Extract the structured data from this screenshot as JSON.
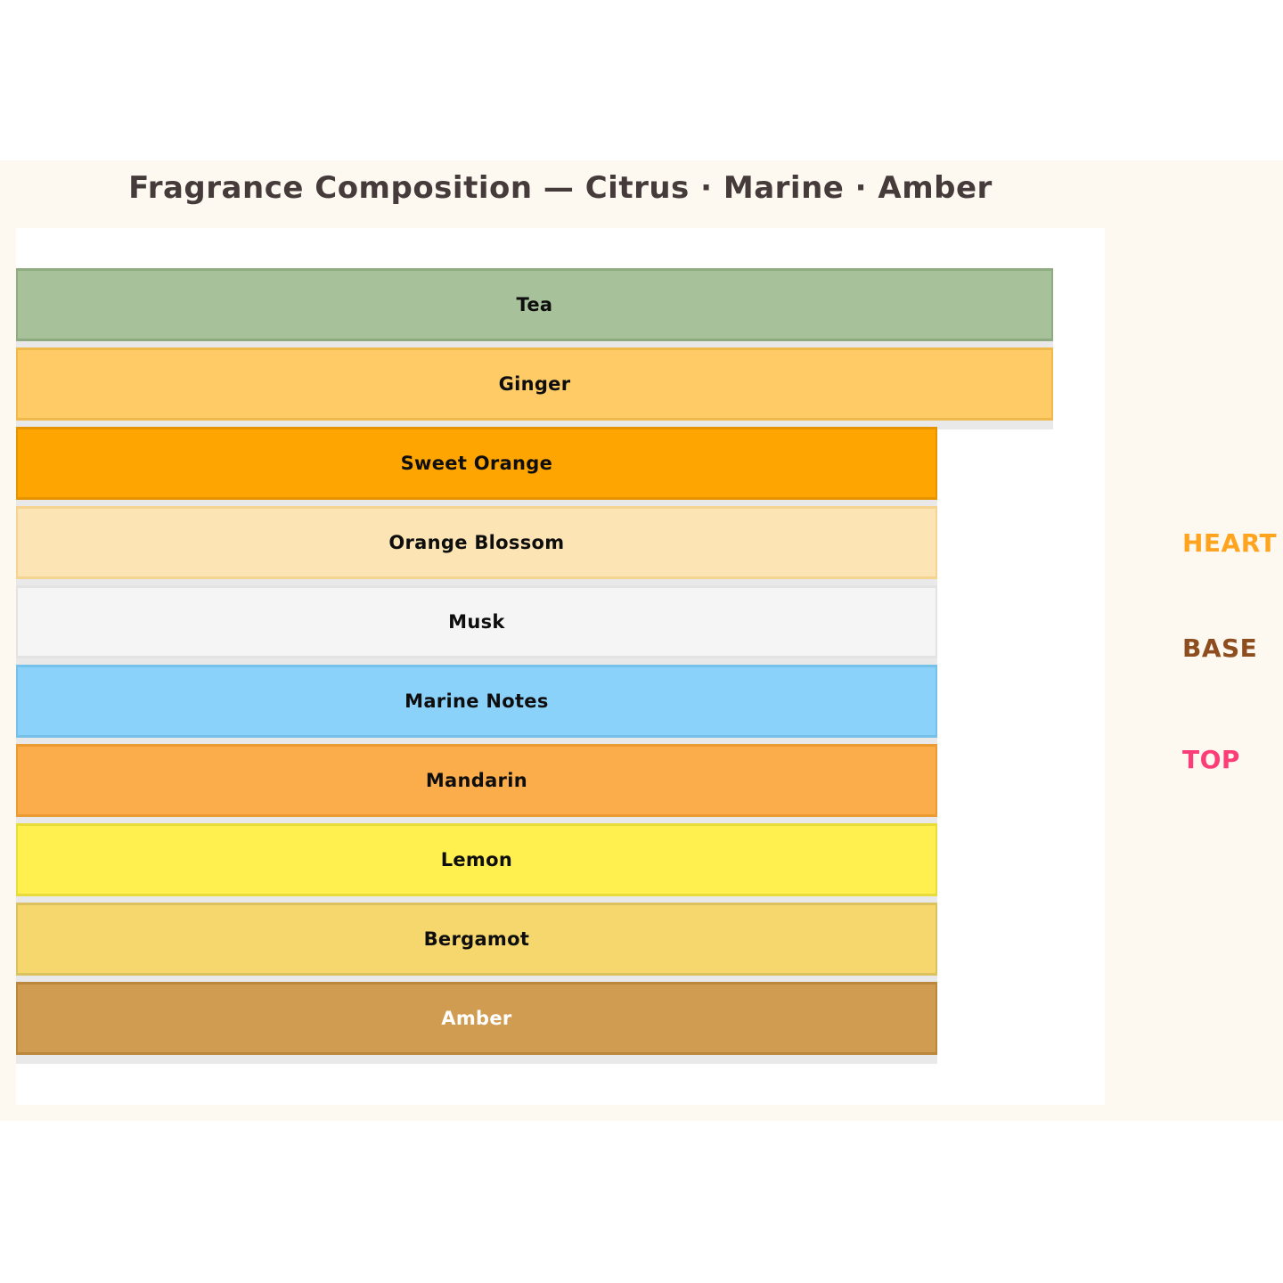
{
  "title": {
    "text": "Fragrance Composition — Citrus · Marine · Amber",
    "color": "#453B3B"
  },
  "colors": {
    "page_bg": "#FFFFFF",
    "band_bg": "#FDF8F0",
    "panel_bg": "#FFFFFF",
    "bar_shadow": "#E9E9E9"
  },
  "side_labels": {
    "heart": {
      "text": "HEART",
      "color": "#FFA41E"
    },
    "base": {
      "text": "BASE",
      "color": "#8E4D1F"
    },
    "top": {
      "text": "TOP",
      "color": "#FC3D77"
    }
  },
  "chart_data": {
    "type": "bar",
    "orientation": "horizontal",
    "title": "Fragrance Composition — Citrus · Marine · Amber",
    "xlabel": "",
    "ylabel": "",
    "axes_visible": false,
    "grid": false,
    "tick_labels_visible": false,
    "legend_position": "right-outside",
    "legend_entries": [
      "HEART",
      "BASE",
      "TOP"
    ],
    "categories": [
      "Tea",
      "Ginger",
      "Sweet Orange",
      "Orange Blossom",
      "Musk",
      "Marine Notes",
      "Mandarin",
      "Lemon",
      "Bergamot",
      "Amber"
    ],
    "values_relative": [
      1.0,
      1.0,
      0.888,
      0.888,
      0.888,
      0.888,
      0.888,
      0.888,
      0.888,
      0.888
    ],
    "values_est": [
      9,
      9,
      8,
      8,
      8,
      8,
      8,
      8,
      8,
      8
    ],
    "bars": [
      {
        "label": "Tea",
        "width_fraction": 0.9525,
        "fill": "#A7C29B",
        "border": "#8FAC80",
        "label_color": "#0E0E0E"
      },
      {
        "label": "Ginger",
        "width_fraction": 0.9525,
        "fill": "#FFCB67",
        "border": "#EFB94D",
        "label_color": "#0E0E0E"
      },
      {
        "label": "Sweet Orange",
        "width_fraction": 0.846,
        "fill": "#FFA502",
        "border": "#E59400",
        "label_color": "#0E0E0E"
      },
      {
        "label": "Orange Blossom",
        "width_fraction": 0.846,
        "fill": "#FCE4B5",
        "border": "#F5D391",
        "label_color": "#0E0E0E"
      },
      {
        "label": "Musk",
        "width_fraction": 0.846,
        "fill": "#F5F5F5",
        "border": "#E3E3E3",
        "label_color": "#0E0E0E"
      },
      {
        "label": "Marine Notes",
        "width_fraction": 0.846,
        "fill": "#8BD2FB",
        "border": "#76C1E9",
        "label_color": "#0E0E0E"
      },
      {
        "label": "Mandarin",
        "width_fraction": 0.846,
        "fill": "#FBAD4C",
        "border": "#EC9B32",
        "label_color": "#0E0E0E"
      },
      {
        "label": "Lemon",
        "width_fraction": 0.846,
        "fill": "#FFF04F",
        "border": "#E8DC3A",
        "label_color": "#0E0E0E"
      },
      {
        "label": "Bergamot",
        "width_fraction": 0.846,
        "fill": "#F5D76E",
        "border": "#DCC25F",
        "label_color": "#0E0E0E"
      },
      {
        "label": "Amber",
        "width_fraction": 0.846,
        "fill": "#D09C51",
        "border": "#BB873D",
        "label_color": "#FFFFFF"
      }
    ]
  }
}
